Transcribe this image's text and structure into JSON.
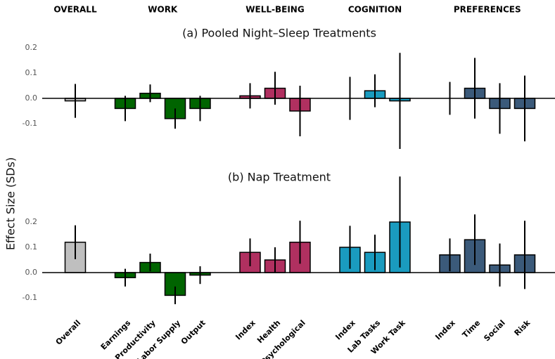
{
  "y_label": "Effect Size (SDs)",
  "chart_data": [
    {
      "type": "bar",
      "title": "(a) Pooled Night–Sleep Treatments",
      "ylim": [
        -0.2,
        0.2
      ],
      "yticks": [
        0.2,
        0.1,
        {
          "value": 0,
          "label": "0.0"
        },
        -0.1
      ],
      "groups": [
        {
          "name": "OVERALL",
          "color": "#bfbfbf",
          "values": [
            -0.01
          ],
          "errors": [
            0.067
          ]
        },
        {
          "name": "WORK",
          "color": "#006400",
          "values": [
            -0.04,
            0.02,
            -0.08,
            -0.04
          ],
          "errors": [
            0.05,
            0.035,
            0.04,
            0.05
          ]
        },
        {
          "name": "WELL-BEING",
          "color": "#b03060",
          "values": [
            0.01,
            0.04,
            -0.05
          ],
          "errors": [
            0.05,
            0.065,
            0.1
          ]
        },
        {
          "name": "COGNITION",
          "color": "#1a9bbf",
          "values": [
            0.0,
            0.03,
            -0.01
          ],
          "errors": [
            0.085,
            0.065,
            0.19
          ]
        },
        {
          "name": "PREFERENCES",
          "color": "#3b5a7a",
          "values": [
            0.0,
            0.04,
            -0.04,
            -0.04
          ],
          "errors": [
            0.065,
            0.12,
            0.1,
            0.13
          ]
        }
      ]
    },
    {
      "type": "bar",
      "title": "(b) Nap Treatment",
      "ylim": [
        -0.13,
        0.38
      ],
      "yticks": [
        0.2,
        0.1,
        {
          "value": 0,
          "label": "0.0"
        },
        -0.1
      ],
      "groups": [
        {
          "color": "#bfbfbf",
          "categories": [
            "Overall"
          ],
          "values": [
            0.12
          ],
          "errors": [
            0.067
          ]
        },
        {
          "color": "#006400",
          "categories": [
            "Earnings",
            "Productivity",
            "Labor Supply",
            "Output"
          ],
          "values": [
            -0.02,
            0.04,
            -0.09,
            -0.01
          ],
          "errors": [
            0.035,
            0.035,
            0.035,
            0.035
          ]
        },
        {
          "color": "#b03060",
          "categories": [
            "Index",
            "Health",
            "Psychological"
          ],
          "values": [
            0.08,
            0.05,
            0.12
          ],
          "errors": [
            0.055,
            0.05,
            0.085
          ]
        },
        {
          "color": "#1a9bbf",
          "categories": [
            "Index",
            "Lab Tasks",
            "Work Task"
          ],
          "values": [
            0.1,
            0.08,
            0.2
          ],
          "errors": [
            0.085,
            0.07,
            0.18
          ]
        },
        {
          "color": "#3b5a7a",
          "categories": [
            "Index",
            "Time",
            "Social",
            "Risk"
          ],
          "values": [
            0.07,
            0.13,
            0.03,
            0.07
          ],
          "errors": [
            0.065,
            0.1,
            0.085,
            0.135
          ]
        }
      ]
    }
  ]
}
